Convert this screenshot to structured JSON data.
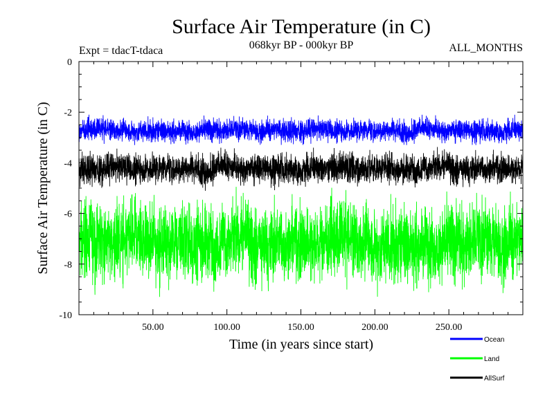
{
  "chart_data": {
    "type": "line",
    "title": "Surface Air Temperature (in C)",
    "subtitle": "068kyr BP - 000kyr BP",
    "experiment_label": "Expt = tdacT-tdaca",
    "period_label": "ALL_MONTHS",
    "xlabel": "Time (in years since start)",
    "ylabel": "Surface Air Temperature (in C)",
    "xlim": [
      0,
      300
    ],
    "ylim": [
      -10,
      0
    ],
    "x_ticks": [
      50,
      100,
      150,
      200,
      250
    ],
    "x_tick_labels": [
      "50.00",
      "100.00",
      "150.00",
      "200.00",
      "250.00"
    ],
    "y_ticks": [
      0,
      -2,
      -4,
      -6,
      -8,
      -10
    ],
    "y_tick_labels": [
      "0",
      "-2",
      "-4",
      "-6",
      "-8",
      "-10"
    ],
    "legend_position": "bottom-right",
    "series": [
      {
        "name": "Ocean",
        "color": "#0000ff",
        "mean": -2.7,
        "range": [
          -3.3,
          -1.8
        ]
      },
      {
        "name": "Land",
        "color": "#00ff00",
        "mean": -7.1,
        "range": [
          -9.7,
          -4.5
        ]
      },
      {
        "name": "AllSurf",
        "color": "#000000",
        "mean": -4.2,
        "range": [
          -5.2,
          -3.2
        ]
      }
    ]
  }
}
